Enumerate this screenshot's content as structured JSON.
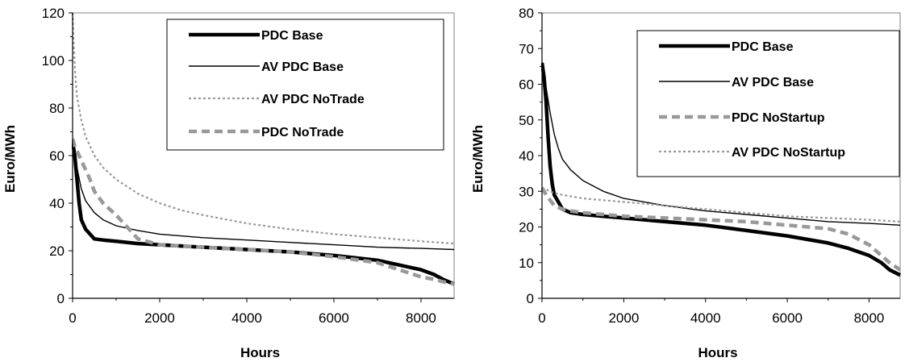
{
  "chart_data": [
    {
      "type": "line",
      "xlabel": "Hours",
      "ylabel": "Euro/MWh",
      "xlim": [
        0,
        8760
      ],
      "ylim": [
        0,
        120
      ],
      "xticks": [
        "0",
        "2000",
        "4000",
        "6000",
        "8000"
      ],
      "yticks": [
        "0",
        "20",
        "40",
        "60",
        "80",
        "100",
        "120"
      ],
      "grid": false,
      "legend_position": "top-right",
      "series": [
        {
          "name": "PDC Base",
          "style": "thick-solid",
          "color": "#000000",
          "x": [
            0,
            50,
            100,
            150,
            200,
            300,
            400,
            500,
            700,
            1000,
            1500,
            2000,
            3000,
            4000,
            5000,
            6000,
            7000,
            7500,
            8000,
            8300,
            8500,
            8760
          ],
          "y": [
            66,
            60,
            50,
            40,
            33,
            29,
            27,
            25,
            24.5,
            24,
            23,
            22.5,
            21.5,
            20.5,
            19.5,
            18,
            16,
            14,
            12,
            10,
            8,
            6
          ]
        },
        {
          "name": "AV PDC Base",
          "style": "thin-solid",
          "color": "#000000",
          "x": [
            0,
            50,
            100,
            200,
            300,
            500,
            700,
            1000,
            1500,
            2000,
            3000,
            4000,
            5000,
            6000,
            7000,
            8000,
            8760
          ],
          "y": [
            66,
            60,
            55,
            46,
            41,
            36,
            33,
            30.5,
            28.5,
            27,
            25.5,
            24.5,
            23.5,
            22.5,
            21.5,
            21,
            20.5
          ]
        },
        {
          "name": "AV PDC NoTrade",
          "style": "dotted",
          "color": "#999999",
          "x": [
            0,
            30,
            60,
            100,
            200,
            300,
            500,
            700,
            1000,
            1500,
            2000,
            2500,
            3000,
            4000,
            5000,
            6000,
            7000,
            8000,
            8760
          ],
          "y": [
            120,
            105,
            95,
            85,
            75,
            68,
            60,
            55,
            50,
            44,
            40,
            37,
            35,
            31.5,
            29,
            27,
            25.5,
            24,
            23
          ]
        },
        {
          "name": "PDC NoTrade",
          "style": "thick-dashed",
          "color": "#999999",
          "x": [
            0,
            50,
            100,
            200,
            300,
            400,
            500,
            700,
            1000,
            1300,
            1500,
            1800,
            2000,
            3000,
            4000,
            5000,
            6000,
            7000,
            7500,
            8000,
            8300,
            8500,
            8760
          ],
          "y": [
            67,
            64,
            62,
            58,
            54,
            50,
            45,
            40,
            35,
            29,
            25,
            23.5,
            22.5,
            21.5,
            20.5,
            19.5,
            17.5,
            15,
            12,
            9,
            8,
            7,
            6
          ]
        }
      ]
    },
    {
      "type": "line",
      "xlabel": "Hours",
      "ylabel": "Euro/MWh",
      "xlim": [
        0,
        8760
      ],
      "ylim": [
        0,
        80
      ],
      "xticks": [
        "0",
        "2000",
        "4000",
        "6000",
        "8000"
      ],
      "yticks": [
        "0",
        "10",
        "20",
        "30",
        "40",
        "50",
        "60",
        "70",
        "80"
      ],
      "grid": false,
      "legend_position": "top-right",
      "series": [
        {
          "name": "PDC Base",
          "style": "thick-solid",
          "color": "#000000",
          "x": [
            0,
            50,
            100,
            150,
            200,
            250,
            300,
            400,
            500,
            700,
            1000,
            1500,
            2000,
            3000,
            4000,
            5000,
            6000,
            7000,
            7500,
            8000,
            8300,
            8500,
            8760
          ],
          "y": [
            66,
            62,
            55,
            45,
            37,
            32,
            29,
            27,
            25,
            24,
            23.5,
            23,
            22.5,
            21.5,
            20.5,
            19,
            17.5,
            15.5,
            14,
            12,
            10,
            8,
            6.5
          ]
        },
        {
          "name": "AV PDC Base",
          "style": "thin-solid",
          "color": "#000000",
          "x": [
            0,
            50,
            100,
            200,
            300,
            400,
            500,
            700,
            1000,
            1500,
            2000,
            3000,
            4000,
            5000,
            6000,
            7000,
            8000,
            8760
          ],
          "y": [
            66,
            63,
            59,
            52,
            46,
            42,
            39,
            36,
            33,
            30,
            28,
            26,
            24.5,
            23.5,
            22.5,
            21.5,
            21,
            20.5
          ]
        },
        {
          "name": "PDC NoStartup",
          "style": "thick-dashed",
          "color": "#999999",
          "x": [
            0,
            100,
            200,
            300,
            500,
            700,
            1000,
            1500,
            2000,
            3000,
            4000,
            5000,
            6000,
            7000,
            7500,
            8000,
            8300,
            8500,
            8760
          ],
          "y": [
            31,
            29,
            27.5,
            26,
            25,
            24.5,
            24,
            23.5,
            23,
            22.5,
            22,
            21.5,
            20.5,
            19.5,
            18,
            15,
            12,
            10,
            8
          ]
        },
        {
          "name": "AV PDC NoStartup",
          "style": "dotted",
          "color": "#999999",
          "x": [
            0,
            100,
            200,
            300,
            500,
            1000,
            1500,
            2000,
            3000,
            4000,
            5000,
            6000,
            7000,
            8000,
            8760
          ],
          "y": [
            31,
            30.5,
            30,
            29.5,
            29,
            28,
            27.5,
            27,
            26,
            25,
            24,
            23,
            22.5,
            22,
            21.5
          ]
        }
      ]
    }
  ]
}
